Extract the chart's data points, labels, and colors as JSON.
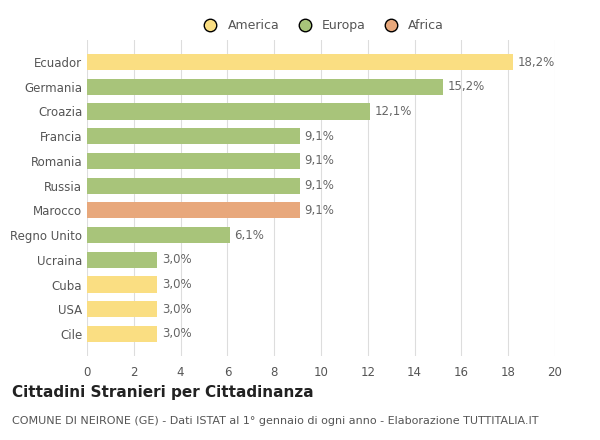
{
  "categories": [
    "Cile",
    "USA",
    "Cuba",
    "Ucraina",
    "Regno Unito",
    "Marocco",
    "Russia",
    "Romania",
    "Francia",
    "Croazia",
    "Germania",
    "Ecuador"
  ],
  "values": [
    3.0,
    3.0,
    3.0,
    3.0,
    6.1,
    9.1,
    9.1,
    9.1,
    9.1,
    12.1,
    15.2,
    18.2
  ],
  "labels": [
    "3,0%",
    "3,0%",
    "3,0%",
    "3,0%",
    "6,1%",
    "9,1%",
    "9,1%",
    "9,1%",
    "9,1%",
    "12,1%",
    "15,2%",
    "18,2%"
  ],
  "colors": [
    "#FADE82",
    "#FADE82",
    "#FADE82",
    "#A8C47A",
    "#A8C47A",
    "#E8A87C",
    "#A8C47A",
    "#A8C47A",
    "#A8C47A",
    "#A8C47A",
    "#A8C47A",
    "#FADE82"
  ],
  "legend_labels": [
    "America",
    "Europa",
    "Africa"
  ],
  "legend_colors": [
    "#FADE82",
    "#A8C47A",
    "#E8A87C"
  ],
  "title": "Cittadini Stranieri per Cittadinanza",
  "subtitle": "COMUNE DI NEIRONE (GE) - Dati ISTAT al 1° gennaio di ogni anno - Elaborazione TUTTITALIA.IT",
  "xlim": [
    0,
    20
  ],
  "xticks": [
    0,
    2,
    4,
    6,
    8,
    10,
    12,
    14,
    16,
    18,
    20
  ],
  "background_color": "#FFFFFF",
  "grid_color": "#DDDDDD",
  "bar_height": 0.65,
  "title_fontsize": 11,
  "subtitle_fontsize": 8,
  "label_fontsize": 8.5,
  "tick_fontsize": 8.5,
  "legend_fontsize": 9
}
